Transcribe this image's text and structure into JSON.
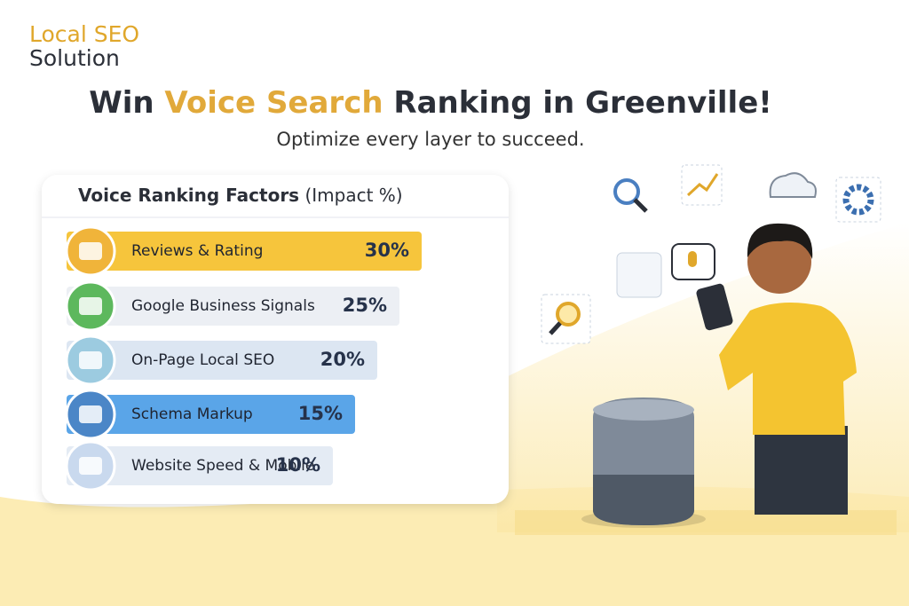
{
  "logo": {
    "line1": "Local SEO",
    "line2": "Solution"
  },
  "headline": {
    "before": "Win ",
    "highlight": "Voice Search",
    "after": " Ranking in Greenville!"
  },
  "subtitle": "Optimize every layer to succeed.",
  "chart_data": {
    "type": "bar",
    "title": "Voice Ranking Factors",
    "title_note": "(Impact %)",
    "categories": [
      "Reviews & Rating",
      "Google Business Signals",
      "On-Page Local SEO",
      "Schema Markup",
      "Website Speed & Mobile"
    ],
    "values": [
      30,
      25,
      20,
      15,
      10
    ],
    "value_labels": [
      "30%",
      "25%",
      "20%",
      "15%",
      "10%"
    ],
    "colors": [
      "#f6c53c",
      "#eceff4",
      "#dce6f2",
      "#5aa5e8",
      "#e4ebf4"
    ]
  }
}
